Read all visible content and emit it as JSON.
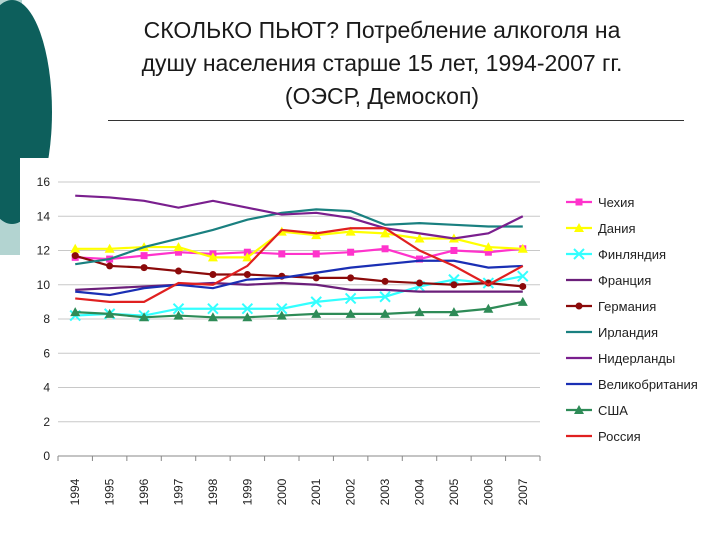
{
  "slide": {
    "title_lines": [
      "СКОЛЬКО ПЬЮТ? Потребление алкоголя на",
      "душу населения старше 15 лет, 1994-2007 гг.",
      "(ОЭСР, Демоскоп)"
    ],
    "accent_colors": {
      "dark_teal": "#0d5f5c",
      "light_teal": "#b3d4d1"
    }
  },
  "chart_data": {
    "type": "line",
    "title": "",
    "xlabel": "",
    "ylabel": "",
    "x": [
      "1994",
      "1995",
      "1996",
      "1997",
      "1998",
      "1999",
      "2000",
      "2001",
      "2002",
      "2003",
      "2004",
      "2005",
      "2006",
      "2007"
    ],
    "ylim": [
      0,
      16
    ],
    "yticks": [
      0,
      2,
      4,
      6,
      8,
      10,
      12,
      14,
      16
    ],
    "grid": "horizontal",
    "legend": "right",
    "series": [
      {
        "name": "Чехия",
        "color": "#ff33cc",
        "marker": "square",
        "values": [
          11.6,
          11.5,
          11.7,
          11.9,
          11.8,
          11.9,
          11.8,
          11.8,
          11.9,
          12.1,
          11.5,
          12.0,
          11.9,
          12.1
        ]
      },
      {
        "name": "Дания",
        "color": "#ffff00",
        "marker": "triangle",
        "values": [
          12.1,
          12.1,
          12.2,
          12.2,
          11.6,
          11.6,
          13.1,
          12.9,
          13.1,
          13.0,
          12.7,
          12.7,
          12.2,
          12.1
        ]
      },
      {
        "name": "Финляндия",
        "color": "#33ffff",
        "marker": "x",
        "values": [
          8.2,
          8.3,
          8.2,
          8.6,
          8.6,
          8.6,
          8.6,
          9.0,
          9.2,
          9.3,
          9.9,
          10.3,
          10.1,
          10.5
        ]
      },
      {
        "name": "Франция",
        "color": "#6b1f7a",
        "marker": "none",
        "values": [
          9.7,
          9.8,
          9.9,
          10.0,
          10.1,
          10.0,
          10.1,
          10.0,
          9.7,
          9.7,
          9.6,
          9.6,
          9.6,
          9.6
        ]
      },
      {
        "name": "Германия",
        "color": "#8b0a0a",
        "marker": "circle",
        "values": [
          11.7,
          11.1,
          11.0,
          10.8,
          10.6,
          10.6,
          10.5,
          10.4,
          10.4,
          10.2,
          10.1,
          10.0,
          10.1,
          9.9
        ]
      },
      {
        "name": "Ирландия",
        "color": "#1a8080",
        "marker": "none",
        "values": [
          11.2,
          11.5,
          12.2,
          12.7,
          13.2,
          13.8,
          14.2,
          14.4,
          14.3,
          13.5,
          13.6,
          13.5,
          13.4,
          13.4
        ]
      },
      {
        "name": "Нидерланды",
        "color": "#7a1f8e",
        "marker": "none",
        "values": [
          15.2,
          15.1,
          14.9,
          14.5,
          14.9,
          14.5,
          14.1,
          14.2,
          13.9,
          13.3,
          13.0,
          12.7,
          13.0,
          14.0
        ]
      },
      {
        "name": "Великобритания",
        "color": "#1a2fb4",
        "marker": "none",
        "values": [
          9.6,
          9.4,
          9.8,
          10.0,
          9.8,
          10.3,
          10.4,
          10.7,
          11.0,
          11.2,
          11.4,
          11.4,
          11.0,
          11.1
        ]
      },
      {
        "name": "США",
        "color": "#2e8b57",
        "marker": "triangle",
        "values": [
          8.4,
          8.3,
          8.1,
          8.2,
          8.1,
          8.1,
          8.2,
          8.3,
          8.3,
          8.3,
          8.4,
          8.4,
          8.6,
          9.0
        ]
      },
      {
        "name": "Россия",
        "color": "#e02020",
        "marker": "none",
        "values": [
          9.2,
          9.0,
          9.0,
          10.1,
          10.0,
          11.1,
          13.2,
          13.0,
          13.3,
          13.3,
          12.0,
          11.1,
          10.0,
          11.1
        ]
      }
    ]
  }
}
